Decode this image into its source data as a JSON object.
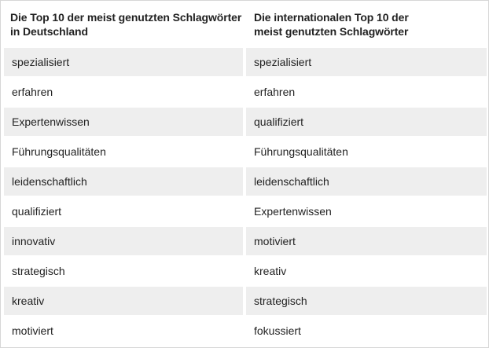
{
  "table": {
    "headers": [
      [
        "Die Top 10 der meist genutzten Schlagwörter",
        "in Deutschland"
      ],
      [
        "Die internationalen Top 10 der",
        "meist genutzten Schlagwörter"
      ]
    ],
    "rows": [
      [
        "spezialisiert",
        "spezialisiert"
      ],
      [
        "erfahren",
        "erfahren"
      ],
      [
        "Expertenwissen",
        "qualifiziert"
      ],
      [
        "Führungsqualitäten",
        "Führungsqualitäten"
      ],
      [
        "leidenschaftlich",
        "leidenschaftlich"
      ],
      [
        "qualifiziert",
        "Expertenwissen"
      ],
      [
        "innovativ",
        "motiviert"
      ],
      [
        "strategisch",
        "kreativ"
      ],
      [
        "kreativ",
        "strategisch"
      ],
      [
        "motiviert",
        "fokussiert"
      ]
    ]
  }
}
